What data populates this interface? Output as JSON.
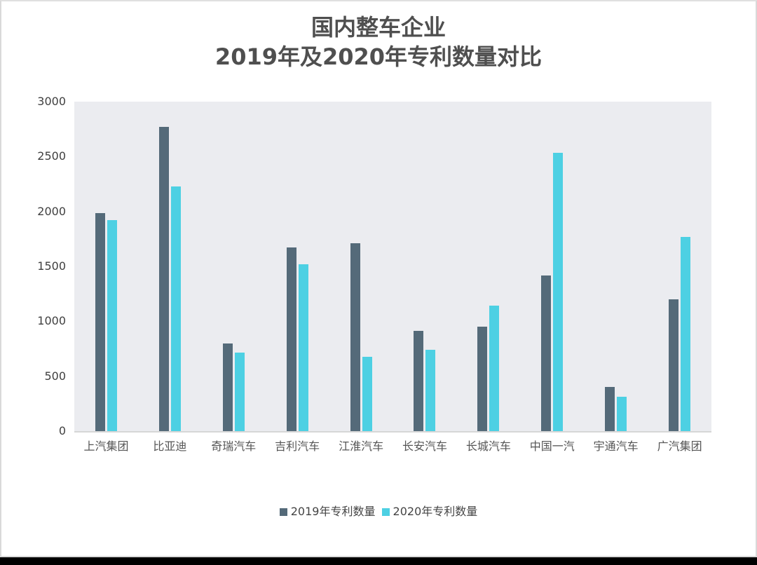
{
  "title": {
    "line1": "国内整车企业",
    "line2": "2019年及2020年专利数量对比"
  },
  "colors": {
    "series_2019": "#546a79",
    "series_2020": "#4dd0e3",
    "plot_background": "#ebecf0",
    "title_color": "#4f4f4f"
  },
  "legend": {
    "items": [
      {
        "label": "2019年专利数量",
        "color": "#546a79"
      },
      {
        "label": "2020年专利数量",
        "color": "#4dd0e3"
      }
    ]
  },
  "y_axis": {
    "ticks": [
      "0",
      "500",
      "1000",
      "1500",
      "2000",
      "2500",
      "3000"
    ]
  },
  "chart_data": {
    "type": "bar",
    "title": "国内整车企业 2019年及2020年专利数量对比",
    "xlabel": "",
    "ylabel": "",
    "ylim": [
      0,
      3000
    ],
    "yticks": [
      0,
      500,
      1000,
      1500,
      2000,
      2500,
      3000
    ],
    "grid": false,
    "legend_position": "bottom",
    "categories": [
      "上汽集团",
      "比亚迪",
      "奇瑞汽车",
      "吉利汽车",
      "江淮汽车",
      "长安汽车",
      "长城汽车",
      "中国一汽",
      "宇通汽车",
      "广汽集团"
    ],
    "series": [
      {
        "name": "2019年专利数量",
        "color": "#546a79",
        "values": [
          1985,
          2770,
          800,
          1670,
          1710,
          915,
          950,
          1415,
          405,
          1200
        ]
      },
      {
        "name": "2020年专利数量",
        "color": "#4dd0e3",
        "values": [
          1920,
          2230,
          715,
          1520,
          675,
          740,
          1140,
          2535,
          315,
          1765
        ]
      }
    ]
  }
}
